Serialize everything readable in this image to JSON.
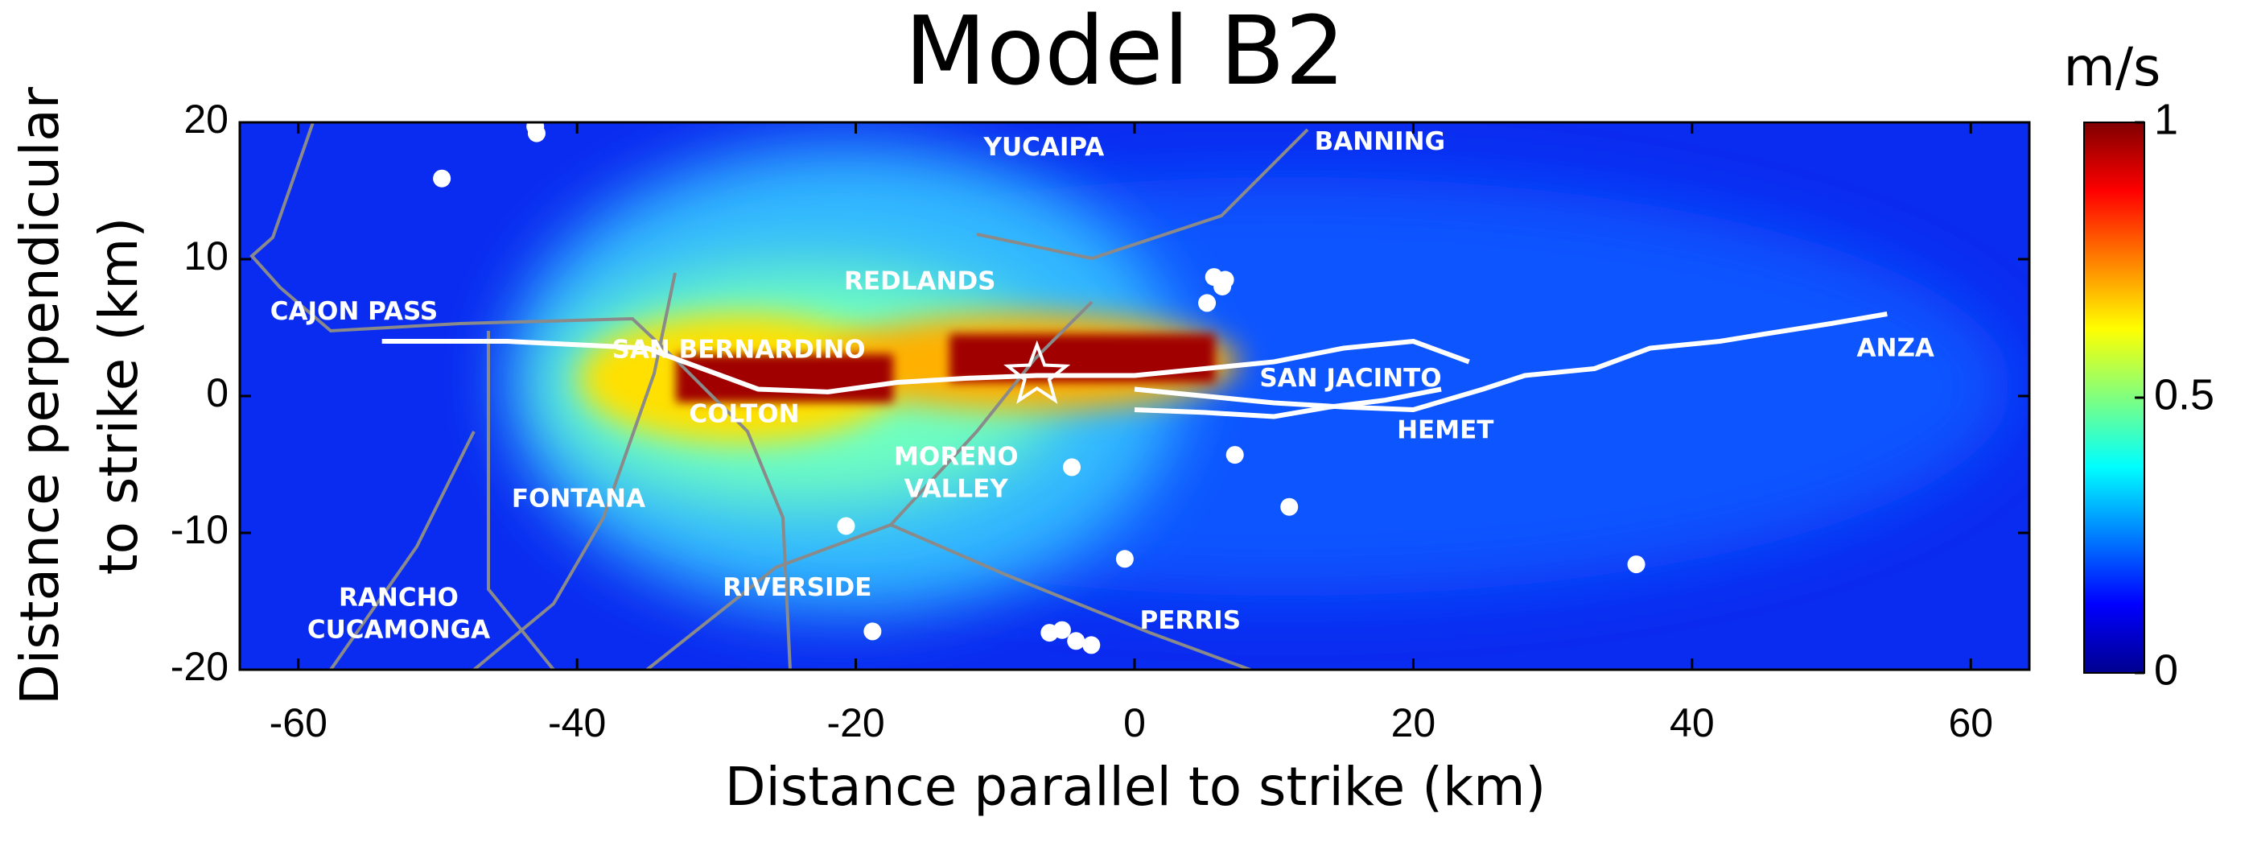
{
  "chart_data": {
    "type": "heatmap",
    "title": "Model B2",
    "x_label": "Distance parallel to strike (km)",
    "y_label": [
      "Distance perpendicular",
      "to strike (km)"
    ],
    "xlim": [
      -64.2,
      64.2
    ],
    "ylim": [
      -20,
      20
    ],
    "xticks": [
      -60,
      -40,
      -20,
      0,
      20,
      40,
      60
    ],
    "yticks": [
      -20,
      -10,
      0,
      10,
      20
    ],
    "colorbar": {
      "label": "m/s",
      "lim": [
        0,
        1
      ],
      "ticks": [
        0,
        0.5,
        1
      ],
      "colormap": "jet"
    },
    "cities": [
      {
        "lines": [
          "YUCAIPA"
        ],
        "x": -6.5,
        "y": 18.1
      },
      {
        "lines": [
          "BANNING"
        ],
        "x": 17.6,
        "y": 18.5
      },
      {
        "lines": [
          "REDLANDS"
        ],
        "x": -15.4,
        "y": 8.3
      },
      {
        "lines": [
          "CAJON PASS"
        ],
        "x": -56,
        "y": 6.1
      },
      {
        "lines": [
          "SAN BERNARDINO"
        ],
        "x": -28.4,
        "y": 3.3
      },
      {
        "lines": [
          "SAN JACINTO"
        ],
        "x": 15.5,
        "y": 1.2
      },
      {
        "lines": [
          "ANZA"
        ],
        "x": 54.6,
        "y": 3.4
      },
      {
        "lines": [
          "COLTON"
        ],
        "x": -28,
        "y": -1.4
      },
      {
        "lines": [
          "HEMET"
        ],
        "x": 22.3,
        "y": -2.6
      },
      {
        "lines": [
          "MORENO",
          "VALLEY"
        ],
        "x": -12.8,
        "y": -5.7
      },
      {
        "lines": [
          "FONTANA"
        ],
        "x": -39.9,
        "y": -7.6
      },
      {
        "lines": [
          "RIVERSIDE"
        ],
        "x": -24.2,
        "y": -14.1
      },
      {
        "lines": [
          "RANCHO",
          "CUCAMONGA"
        ],
        "x": -52.8,
        "y": -16
      },
      {
        "lines": [
          "PERRIS"
        ],
        "x": 4,
        "y": -16.5
      }
    ],
    "stations": {
      "x": [
        -49.7,
        -43,
        -42.9,
        5.7,
        6.5,
        6.3,
        5.2,
        -4.5,
        7.2,
        11.1,
        -20.7,
        -0.7,
        36,
        -18.8,
        -6.1,
        -5.2,
        -4.2,
        -3.1
      ],
      "y": [
        15.9,
        19.7,
        19.2,
        8.7,
        8.5,
        8,
        6.8,
        -5.2,
        -4.3,
        -8.1,
        -9.5,
        -11.9,
        -12.3,
        -17.2,
        -17.3,
        -17.1,
        -17.9,
        -18.2
      ]
    },
    "faults": [
      {
        "x": [
          -54,
          -45,
          -35,
          -31,
          -27,
          -22,
          -17,
          -12,
          -7,
          0,
          5,
          10,
          15,
          20,
          24
        ],
        "y": [
          4,
          4,
          3.5,
          2,
          0.5,
          0.3,
          1,
          1.3,
          1.5,
          1.5,
          2,
          2.5,
          3.5,
          4,
          2.5
        ]
      },
      {
        "x": [
          0,
          5,
          10,
          15,
          20,
          25,
          28,
          33,
          37,
          42,
          45,
          50,
          54
        ],
        "y": [
          0.5,
          0,
          -0.5,
          -0.8,
          -1,
          0.5,
          1.5,
          2,
          3.5,
          4,
          4.5,
          5.3,
          6
        ]
      },
      {
        "x": [
          0,
          5,
          10,
          14,
          18,
          22
        ],
        "y": [
          -1,
          -1.2,
          -1.5,
          -0.8,
          -0.3,
          0.5
        ]
      }
    ],
    "hypocenter": {
      "x": -7,
      "y": 1.5
    }
  }
}
